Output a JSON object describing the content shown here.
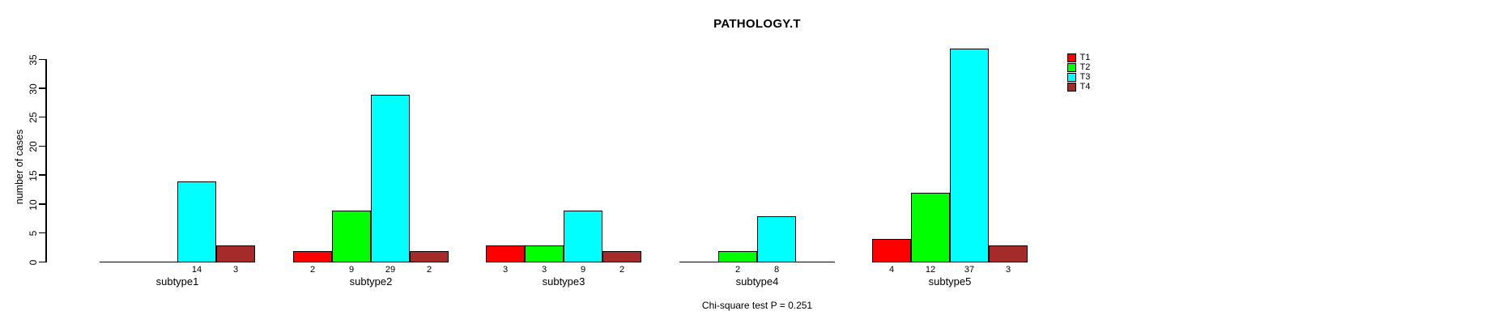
{
  "chart_data": {
    "type": "bar",
    "title": "PATHOLOGY.T",
    "ylabel": "number of cases",
    "xlabel": "",
    "categories": [
      "subtype1",
      "subtype2",
      "subtype3",
      "subtype4",
      "subtype5"
    ],
    "series": [
      {
        "name": "T1",
        "color": "#FF0000",
        "values": [
          0,
          2,
          3,
          0,
          4
        ]
      },
      {
        "name": "T2",
        "color": "#00FF00",
        "values": [
          0,
          9,
          3,
          2,
          12
        ]
      },
      {
        "name": "T3",
        "color": "#00FFFF",
        "values": [
          14,
          29,
          9,
          8,
          37
        ]
      },
      {
        "name": "T4",
        "color": "#A52A2A",
        "values": [
          3,
          2,
          2,
          0,
          3
        ]
      }
    ],
    "value_labels_shown_for_nonzero_bars": true,
    "yticks": [
      0,
      5,
      10,
      15,
      20,
      25,
      30,
      35
    ],
    "ylim": [
      0,
      35
    ],
    "grid": false,
    "legend_position": "top-right",
    "annotation": "Chi-square test P = 0.251",
    "axis_color": "#000000",
    "background_color": "#FFFFFF"
  }
}
